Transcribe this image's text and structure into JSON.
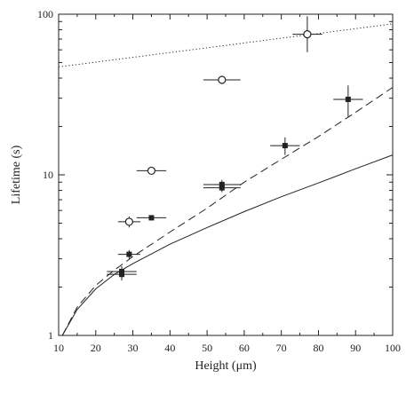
{
  "chart_data": {
    "type": "scatter",
    "title": "",
    "xlabel": "Height (μm)",
    "ylabel": "Lifetime (s)",
    "xlim": [
      10,
      100
    ],
    "ylim": [
      1,
      100
    ],
    "yscale": "log",
    "grid": false,
    "x_ticks": [
      "10",
      "20",
      "30",
      "40",
      "50",
      "60",
      "70",
      "80",
      "90",
      "100"
    ],
    "y_ticks": [
      "1",
      "10",
      "100"
    ],
    "series": [
      {
        "marker": "open-circle",
        "points": [
          {
            "x": 29,
            "y": 5.1,
            "xerr": 3,
            "ylo": 4.7,
            "yhi": 5.5
          },
          {
            "x": 35,
            "y": 10.6,
            "xerr": 4,
            "ylo": 10.2,
            "yhi": 11
          },
          {
            "x": 54,
            "y": 39,
            "xerr": 5,
            "ylo": 37.5,
            "yhi": 40.5
          },
          {
            "x": 77,
            "y": 75,
            "xerr": 4,
            "ylo": 58,
            "yhi": 97
          }
        ]
      },
      {
        "marker": "filled-square",
        "points": [
          {
            "x": 27,
            "y": 2.5,
            "xerr": 4,
            "ylo": 2.3,
            "yhi": 2.7
          },
          {
            "x": 27,
            "y": 2.4,
            "xerr": 4,
            "ylo": 2.2,
            "yhi": 2.6
          },
          {
            "x": 29,
            "y": 3.2,
            "xerr": 3,
            "ylo": 3.0,
            "yhi": 3.4
          },
          {
            "x": 35,
            "y": 5.4,
            "xerr": 4,
            "ylo": 5.2,
            "yhi": 5.6
          },
          {
            "x": 54,
            "y": 8.7,
            "xerr": 5,
            "ylo": 8.1,
            "yhi": 9.3
          },
          {
            "x": 54,
            "y": 8.3,
            "xerr": 5,
            "ylo": 7.8,
            "yhi": 8.8
          },
          {
            "x": 71,
            "y": 15.2,
            "xerr": 4,
            "ylo": 13.3,
            "yhi": 17.1
          },
          {
            "x": 88,
            "y": 29.5,
            "xerr": 4,
            "ylo": 23,
            "yhi": 36
          }
        ]
      }
    ],
    "lines": [
      {
        "style": "solid",
        "x": [
          11,
          15,
          20,
          25,
          30,
          40,
          50,
          60,
          70,
          80,
          90,
          100
        ],
        "y": [
          1,
          1.45,
          1.95,
          2.4,
          2.8,
          3.7,
          4.7,
          5.9,
          7.3,
          8.9,
          10.9,
          13.3
        ]
      },
      {
        "style": "dashed",
        "x": [
          11,
          15,
          20,
          25,
          30,
          40,
          50,
          60,
          70,
          80,
          90,
          100
        ],
        "y": [
          1,
          1.5,
          2.05,
          2.55,
          3.1,
          4.4,
          6.2,
          9.0,
          12.5,
          17.3,
          24.5,
          35
        ]
      },
      {
        "style": "dotted",
        "x": [
          10,
          100
        ],
        "y": [
          47,
          87
        ]
      }
    ]
  }
}
